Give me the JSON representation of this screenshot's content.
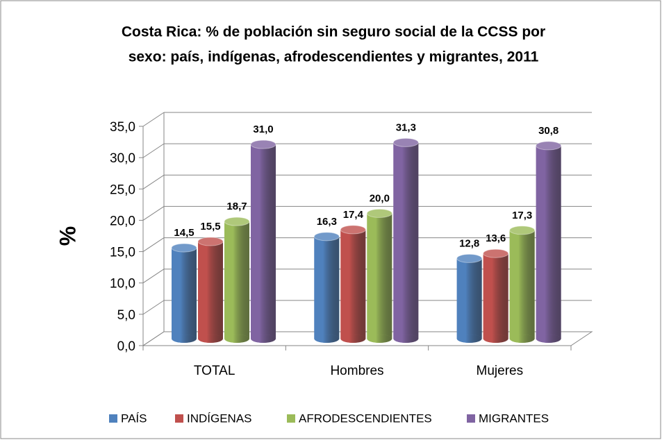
{
  "chart_data": {
    "type": "bar3d",
    "title": [
      "Costa Rica: % de población sin seguro social de la CCSS por",
      "sexo: país, indígenas, afrodescendientes y migrantes, 2011"
    ],
    "ylabel": "%",
    "categories": [
      "TOTAL",
      "Hombres",
      "Mujeres"
    ],
    "series": [
      {
        "name": "PAÍS",
        "color": "#4f81bd",
        "values": [
          14.5,
          16.3,
          12.8
        ],
        "value_labels": [
          "14,5",
          "16,3",
          "12,8"
        ]
      },
      {
        "name": "INDÍGENAS",
        "color": "#c0504d",
        "values": [
          15.5,
          17.4,
          13.6
        ],
        "value_labels": [
          "15,5",
          "17,4",
          "13,6"
        ]
      },
      {
        "name": "AFRODESCENDIENTES",
        "color": "#9bbb59",
        "values": [
          18.7,
          20.0,
          17.3
        ],
        "value_labels": [
          "18,7",
          "20,0",
          "17,3"
        ]
      },
      {
        "name": "MIGRANTES",
        "color": "#8064a2",
        "values": [
          31.0,
          31.3,
          30.8
        ],
        "value_labels": [
          "31,0",
          "31,3",
          "30,8"
        ]
      }
    ],
    "ylim": [
      0,
      35
    ],
    "yticks": [
      {
        "value": 0,
        "label": "0,0"
      },
      {
        "value": 5,
        "label": "5,0"
      },
      {
        "value": 10,
        "label": "10,0"
      },
      {
        "value": 15,
        "label": "15,0"
      },
      {
        "value": 20,
        "label": "20,0"
      },
      {
        "value": 25,
        "label": "25,0"
      },
      {
        "value": 30,
        "label": "30,0"
      },
      {
        "value": 35,
        "label": "35,0"
      }
    ],
    "grid": true,
    "legend": "bottom"
  }
}
